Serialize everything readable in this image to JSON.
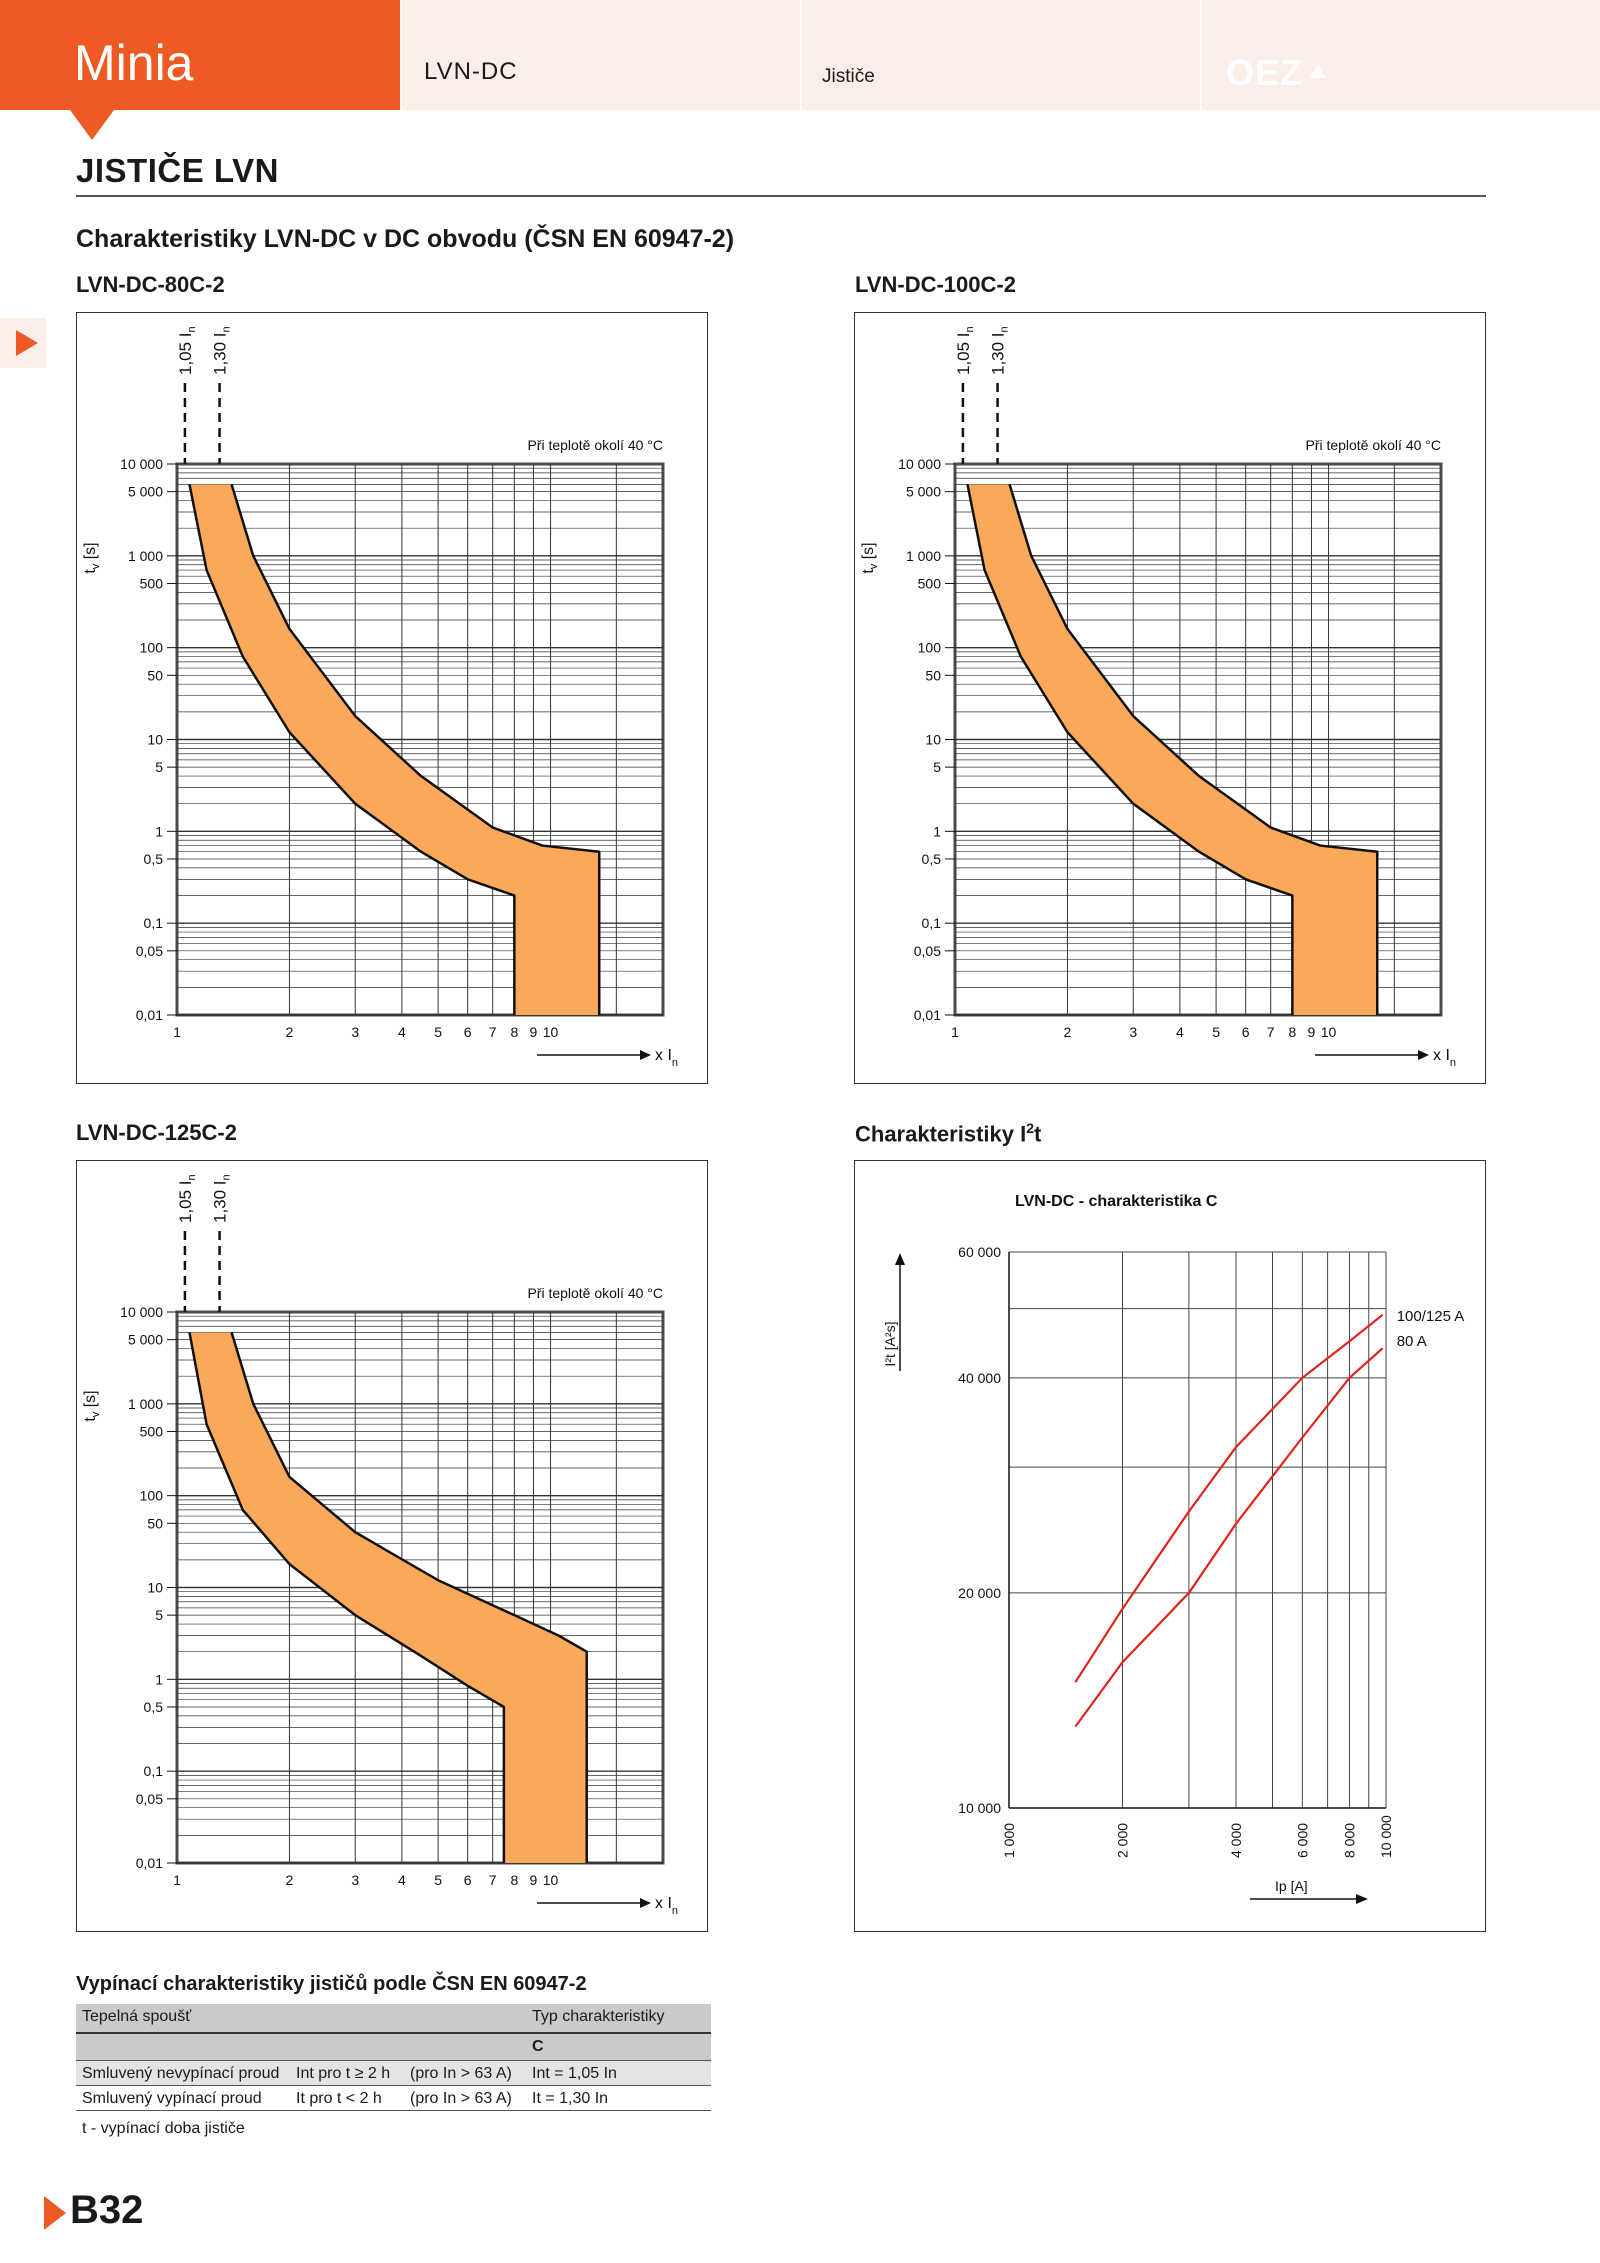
{
  "header": {
    "brand": "Minia",
    "product": "LVN-DC",
    "category": "Jističe",
    "logo": "OEZ"
  },
  "page": {
    "title": "JISTIČE LVN",
    "subtitle": "Charakteristiky LVN-DC v DC obvodu  (ČSN EN 60947-2)",
    "number": "B32"
  },
  "trip_charts": {
    "conv_labels": [
      "1,05 I",
      "1,30 I"
    ],
    "conv_sub": "n",
    "temp_note": "Při teplotě okolí 40 °C",
    "y_axis_label": "t",
    "y_axis_sub": "v",
    "y_axis_unit": " [s]",
    "x_axis_label": "x I",
    "x_axis_sub": "n",
    "y_ticks": [
      {
        "v": 10000,
        "label": "10 000"
      },
      {
        "v": 5000,
        "label": "5 000"
      },
      {
        "v": 1000,
        "label": "1 000"
      },
      {
        "v": 500,
        "label": "500"
      },
      {
        "v": 100,
        "label": "100"
      },
      {
        "v": 50,
        "label": "50"
      },
      {
        "v": 10,
        "label": "10"
      },
      {
        "v": 5,
        "label": "5"
      },
      {
        "v": 1,
        "label": "1"
      },
      {
        "v": 0.5,
        "label": "0,5"
      },
      {
        "v": 0.1,
        "label": "0,1"
      },
      {
        "v": 0.05,
        "label": "0,05"
      },
      {
        "v": 0.01,
        "label": "0,01"
      }
    ],
    "x_ticks": [
      {
        "v": 1,
        "label": "1"
      },
      {
        "v": 2,
        "label": "2"
      },
      {
        "v": 3,
        "label": "3"
      },
      {
        "v": 4,
        "label": "4"
      },
      {
        "v": 5,
        "label": "5"
      },
      {
        "v": 6,
        "label": "6"
      },
      {
        "v": 7,
        "label": "7"
      },
      {
        "v": 8,
        "label": "8"
      },
      {
        "v": 9,
        "label": "9"
      },
      {
        "v": 10,
        "label": "10"
      }
    ],
    "band_color": "#faa85a"
  },
  "chart_data": [
    {
      "type": "area",
      "title": "LVN-DC-80C-2",
      "xlabel": "x In",
      "ylabel": "tv [s]",
      "x_scale": "log",
      "y_scale": "log",
      "xlim": [
        1,
        20
      ],
      "ylim": [
        0.01,
        10000
      ],
      "lower_curve": {
        "x": [
          1.08,
          1.2,
          1.5,
          2.0,
          3.0,
          4.5,
          6.0,
          8.0
        ],
        "y": [
          6000,
          700,
          80,
          12,
          2.0,
          0.6,
          0.3,
          0.2
        ]
      },
      "upper_curve": {
        "x": [
          1.4,
          1.6,
          2.0,
          3.0,
          4.5,
          7.0,
          9.5,
          13.5
        ],
        "y": [
          6000,
          1000,
          160,
          18,
          4.0,
          1.1,
          0.7,
          0.6
        ]
      },
      "instantaneous": {
        "x_min": 8.0,
        "x_max": 13.5,
        "t_min": 0.01
      }
    },
    {
      "type": "area",
      "title": "LVN-DC-100C-2",
      "xlabel": "x In",
      "ylabel": "tv [s]",
      "x_scale": "log",
      "y_scale": "log",
      "xlim": [
        1,
        20
      ],
      "ylim": [
        0.01,
        10000
      ],
      "lower_curve": {
        "x": [
          1.08,
          1.2,
          1.5,
          2.0,
          3.0,
          4.5,
          6.0,
          8.0
        ],
        "y": [
          6000,
          700,
          80,
          12,
          2.0,
          0.6,
          0.3,
          0.2
        ]
      },
      "upper_curve": {
        "x": [
          1.4,
          1.6,
          2.0,
          3.0,
          4.5,
          7.0,
          9.5,
          13.5
        ],
        "y": [
          6000,
          1000,
          160,
          18,
          4.0,
          1.1,
          0.7,
          0.6
        ]
      },
      "instantaneous": {
        "x_min": 8.0,
        "x_max": 13.5,
        "t_min": 0.01
      }
    },
    {
      "type": "area",
      "title": "LVN-DC-125C-2",
      "xlabel": "x In",
      "ylabel": "tv [s]",
      "x_scale": "log",
      "y_scale": "log",
      "xlim": [
        1,
        20
      ],
      "ylim": [
        0.01,
        10000
      ],
      "lower_curve": {
        "x": [
          1.08,
          1.2,
          1.5,
          2.0,
          3.0,
          4.5,
          6.0,
          7.5
        ],
        "y": [
          6000,
          600,
          70,
          18,
          5.0,
          1.8,
          0.85,
          0.5
        ]
      },
      "upper_curve": {
        "x": [
          1.4,
          1.6,
          2.0,
          3.0,
          5.0,
          8.0,
          10.5,
          12.5
        ],
        "y": [
          6000,
          1000,
          160,
          40,
          12,
          5.0,
          3.0,
          2.0
        ]
      },
      "instantaneous": {
        "x_min": 7.5,
        "x_max": 12.5,
        "t_min": 0.01
      }
    },
    {
      "type": "line",
      "title": "LVN-DC - charakteristika C",
      "xlabel": "Ip [A]",
      "ylabel": "I²t [A²s]",
      "x_scale": "log",
      "y_scale": "log",
      "xlim": [
        1000,
        10000
      ],
      "ylim": [
        10000,
        60000
      ],
      "x_ticks": [
        "1 000",
        "2 000",
        "4 000",
        "6 000",
        "8 000",
        "10 000"
      ],
      "y_ticks": [
        "10 000",
        "20 000",
        "40 000",
        "60 000"
      ],
      "series": [
        {
          "name": "100/125 A",
          "x": [
            1500,
            2000,
            3000,
            4000,
            6000,
            8000,
            9800
          ],
          "y": [
            15000,
            19000,
            26000,
            32000,
            40000,
            45000,
            49000
          ]
        },
        {
          "name": "80 A",
          "x": [
            1500,
            2000,
            3000,
            4000,
            6000,
            8000,
            9800
          ],
          "y": [
            13000,
            16000,
            20000,
            25000,
            33000,
            40000,
            44000
          ]
        }
      ]
    }
  ],
  "i2t_chart": {
    "section_title": "Charakteristiky I²t",
    "inner_title": "LVN-DC - charakteristika C",
    "y_axis": "I²t [A²s]",
    "x_axis": "Ip [A]",
    "line_color": "#e2231a"
  },
  "table": {
    "title": "Vypínací charakteristiky jističů podle ČSN EN 60947-2",
    "col_heat": "Tepelná spoušť",
    "col_type": "Typ charakteristiky",
    "col_type_sub": "C",
    "rows": [
      {
        "name": "Smluvený nevypínací proud",
        "cond": "Int pro t ≥ 2 h",
        "range": "(pro In > 63 A)",
        "value": "Int = 1,05 In"
      },
      {
        "name": "Smluvený vypínací proud",
        "cond": "It pro t < 2 h",
        "range": "(pro In > 63 A)",
        "value": "It = 1,30 In"
      }
    ],
    "note": "t - vypínací doba jističe"
  }
}
